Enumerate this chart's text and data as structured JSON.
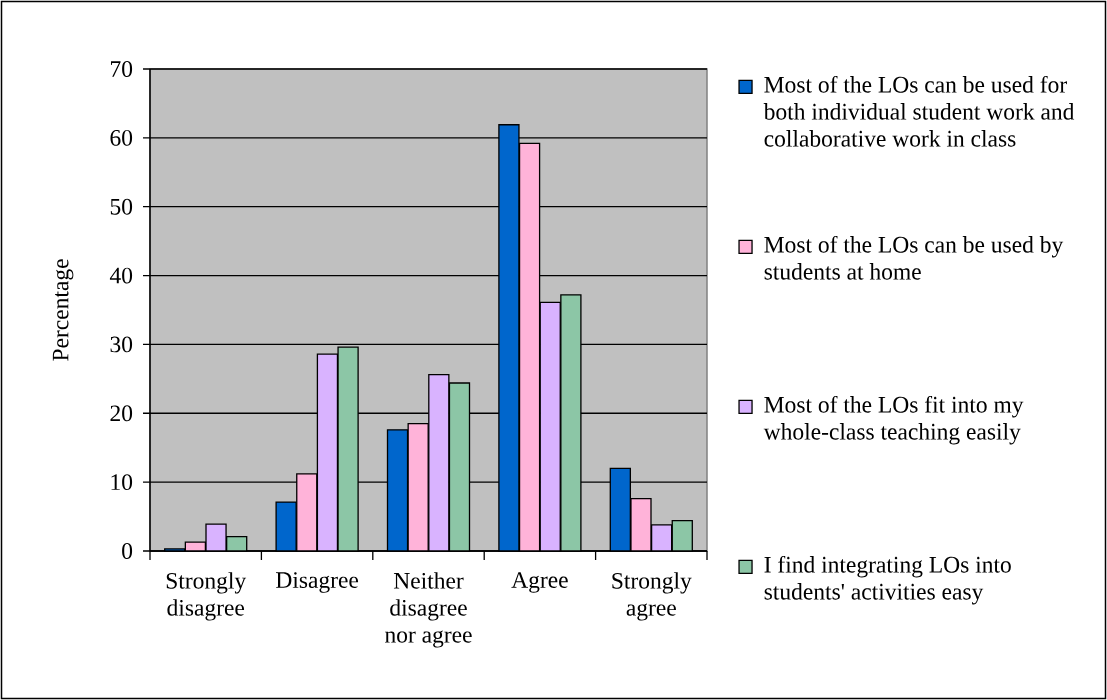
{
  "chart_data": {
    "type": "bar",
    "ylabel": "Percentage",
    "categories": [
      "Strongly disagree",
      "Disagree",
      "Neither disagree nor agree",
      "Agree",
      "Strongly agree"
    ],
    "series": [
      {
        "name": "Most of the LOs can be used for both individual student work and collaborative work in class",
        "color": "#0066cc",
        "values": [
          0.3,
          7.1,
          17.6,
          61.9,
          12.0
        ]
      },
      {
        "name": "Most of the LOs can be used by students at home",
        "color": "#ffb3d9",
        "values": [
          1.3,
          11.2,
          18.5,
          59.2,
          7.6
        ]
      },
      {
        "name": "Most of the LOs fit into my whole-class teaching easily",
        "color": "#d9b3ff",
        "values": [
          3.9,
          28.6,
          25.6,
          36.1,
          3.8
        ]
      },
      {
        "name": "I find integrating LOs into students' activities easy",
        "color": "#8cc6a6",
        "values": [
          2.1,
          29.6,
          24.4,
          37.2,
          4.4
        ]
      }
    ],
    "ylim": [
      0,
      70
    ],
    "yticks": [
      0,
      10,
      20,
      30,
      40,
      50,
      60,
      70
    ],
    "grid": "y",
    "legend": "right"
  }
}
